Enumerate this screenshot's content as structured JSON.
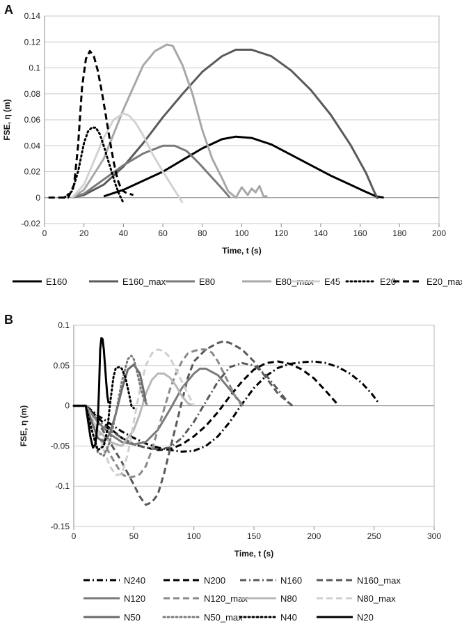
{
  "chart_data": [
    {
      "type": "line",
      "panel": "A",
      "xlabel": "Time, t (s)",
      "ylabel": "FSE, η (m)",
      "xlim": [
        0,
        200
      ],
      "ylim": [
        -0.02,
        0.14
      ],
      "xticks": [
        0,
        20,
        40,
        60,
        80,
        100,
        120,
        140,
        160,
        180,
        200
      ],
      "yticks": [
        -0.02,
        0,
        0.02,
        0.04,
        0.06,
        0.08,
        0.1,
        0.12,
        0.14
      ],
      "ytick_labels": [
        "-0.02",
        "0",
        "0.02",
        "0.04",
        "0.06",
        "0.08",
        "0.1",
        "0.12",
        "0.14"
      ],
      "grid": true,
      "legend_position": "bottom",
      "series": [
        {
          "name": "E160",
          "color": "#000000",
          "dash": "solid",
          "x": [
            30,
            40,
            50,
            60,
            70,
            80,
            90,
            97,
            105,
            115,
            125,
            135,
            145,
            155,
            162,
            168,
            172
          ],
          "y": [
            0.001,
            0.006,
            0.013,
            0.02,
            0.029,
            0.038,
            0.045,
            0.047,
            0.046,
            0.041,
            0.033,
            0.025,
            0.017,
            0.01,
            0.005,
            0.001,
            0
          ]
        },
        {
          "name": "E160_max",
          "color": "#5a5a5a",
          "dash": "solid",
          "x": [
            14,
            20,
            30,
            40,
            50,
            60,
            70,
            80,
            90,
            97,
            105,
            115,
            125,
            135,
            145,
            155,
            163,
            167,
            169
          ],
          "y": [
            0,
            0.002,
            0.01,
            0.024,
            0.042,
            0.062,
            0.08,
            0.097,
            0.109,
            0.114,
            0.114,
            0.109,
            0.098,
            0.083,
            0.064,
            0.041,
            0.019,
            0.005,
            -0.001
          ]
        },
        {
          "name": "E80",
          "color": "#7a7a7a",
          "dash": "solid",
          "x": [
            14,
            20,
            30,
            40,
            50,
            60,
            66,
            72,
            78,
            84,
            90,
            94
          ],
          "y": [
            0,
            0.003,
            0.014,
            0.025,
            0.034,
            0.04,
            0.04,
            0.036,
            0.027,
            0.017,
            0.007,
            0
          ]
        },
        {
          "name": "E80_max",
          "color": "#a8a8a8",
          "dash": "solid",
          "x": [
            14,
            20,
            30,
            40,
            50,
            56,
            62,
            65,
            70,
            75,
            80,
            85,
            90,
            93,
            97,
            100,
            103,
            105,
            107,
            109,
            111,
            113
          ],
          "y": [
            0,
            0.006,
            0.03,
            0.068,
            0.102,
            0.113,
            0.118,
            0.117,
            0.102,
            0.08,
            0.052,
            0.03,
            0.015,
            0.005,
            0,
            0.008,
            0.002,
            0.007,
            0.004,
            0.009,
            0.001,
            0.001
          ]
        },
        {
          "name": "E45",
          "color": "#d2d2d2",
          "dash": "solid",
          "x": [
            14,
            20,
            25,
            30,
            35,
            40,
            43,
            46,
            50,
            55,
            60,
            65,
            70
          ],
          "y": [
            0,
            0.01,
            0.028,
            0.046,
            0.06,
            0.065,
            0.063,
            0.058,
            0.048,
            0.033,
            0.02,
            0.008,
            -0.004
          ]
        },
        {
          "name": "E20",
          "color": "#000000",
          "dash": "dotted",
          "x": [
            10,
            14,
            17,
            20,
            22,
            24,
            26,
            28,
            30,
            32,
            34,
            36,
            38,
            40
          ],
          "y": [
            0,
            0.005,
            0.02,
            0.042,
            0.051,
            0.054,
            0.054,
            0.049,
            0.04,
            0.03,
            0.02,
            0.01,
            0.002,
            -0.004
          ]
        },
        {
          "name": "E20_max",
          "color": "#000000",
          "dash": "dashed",
          "x": [
            2,
            12,
            15,
            17,
            19,
            21,
            23,
            25,
            27,
            29,
            31,
            33,
            35,
            37,
            39,
            41,
            43,
            45
          ],
          "y": [
            0,
            0,
            0.01,
            0.04,
            0.085,
            0.107,
            0.113,
            0.109,
            0.098,
            0.082,
            0.064,
            0.045,
            0.028,
            0.014,
            0.006,
            0.004,
            0.003,
            0.002
          ]
        }
      ]
    },
    {
      "type": "line",
      "panel": "B",
      "xlabel": "Time, t (s)",
      "ylabel": "FSE, η (m)",
      "xlim": [
        0,
        300
      ],
      "ylim": [
        -0.15,
        0.1
      ],
      "xticks": [
        0,
        50,
        100,
        150,
        200,
        250,
        300
      ],
      "yticks": [
        -0.15,
        -0.1,
        -0.05,
        0,
        0.05,
        0.1
      ],
      "ytick_labels": [
        "-0.15",
        "-0.1",
        "-0.05",
        "0",
        "0.05",
        "0.1"
      ],
      "grid": true,
      "legend_position": "bottom",
      "series": [
        {
          "name": "N240",
          "color": "#000000",
          "dash": "dashdot",
          "x": [
            0,
            10,
            20,
            30,
            40,
            50,
            60,
            70,
            80,
            90,
            100,
            110,
            120,
            130,
            140,
            150,
            160,
            170,
            180,
            190,
            200,
            210,
            220,
            230,
            240,
            248,
            253
          ],
          "y": [
            0,
            0,
            -0.012,
            -0.022,
            -0.032,
            -0.04,
            -0.047,
            -0.052,
            -0.055,
            -0.057,
            -0.056,
            -0.05,
            -0.038,
            -0.02,
            0.002,
            0.022,
            0.037,
            0.047,
            0.052,
            0.054,
            0.055,
            0.053,
            0.048,
            0.04,
            0.028,
            0.015,
            0.005
          ]
        },
        {
          "name": "N200",
          "color": "#000000",
          "dash": "dashed",
          "x": [
            0,
            10,
            20,
            30,
            40,
            50,
            60,
            70,
            80,
            90,
            100,
            110,
            120,
            130,
            140,
            150,
            160,
            170,
            180,
            190,
            200,
            210,
            220
          ],
          "y": [
            0,
            0,
            -0.015,
            -0.028,
            -0.04,
            -0.048,
            -0.052,
            -0.055,
            -0.054,
            -0.048,
            -0.038,
            -0.025,
            -0.008,
            0.012,
            0.03,
            0.045,
            0.053,
            0.055,
            0.052,
            0.045,
            0.034,
            0.018,
            0.001
          ]
        },
        {
          "name": "N160",
          "color": "#5a5a5a",
          "dash": "dashdot",
          "x": [
            0,
            10,
            20,
            30,
            40,
            50,
            60,
            70,
            80,
            90,
            100,
            110,
            120,
            130,
            140,
            150,
            160,
            170,
            180
          ],
          "y": [
            0,
            0,
            -0.018,
            -0.03,
            -0.04,
            -0.048,
            -0.052,
            -0.054,
            -0.052,
            -0.04,
            -0.02,
            0.005,
            0.03,
            0.048,
            0.053,
            0.05,
            0.038,
            0.02,
            0.001
          ]
        },
        {
          "name": "N160_max",
          "color": "#5a5a5a",
          "dash": "dashed",
          "x": [
            0,
            10,
            15,
            20,
            30,
            40,
            50,
            55,
            60,
            65,
            70,
            75,
            80,
            85,
            90,
            95,
            100,
            110,
            120,
            125,
            130,
            140,
            150,
            160,
            170,
            182
          ],
          "y": [
            0,
            0,
            -0.01,
            -0.02,
            -0.045,
            -0.07,
            -0.098,
            -0.113,
            -0.123,
            -0.12,
            -0.11,
            -0.085,
            -0.055,
            -0.025,
            0.005,
            0.035,
            0.055,
            0.07,
            0.078,
            0.08,
            0.078,
            0.07,
            0.055,
            0.035,
            0.015,
            0
          ]
        },
        {
          "name": "N120",
          "color": "#7a7a7a",
          "dash": "solid",
          "x": [
            0,
            10,
            20,
            30,
            40,
            50,
            60,
            70,
            80,
            90,
            100,
            105,
            110,
            120,
            130,
            141
          ],
          "y": [
            0,
            0,
            -0.02,
            -0.035,
            -0.045,
            -0.048,
            -0.045,
            -0.03,
            -0.005,
            0.022,
            0.04,
            0.046,
            0.046,
            0.038,
            0.02,
            0
          ]
        },
        {
          "name": "N120_max",
          "color": "#8a8a8a",
          "dash": "dashed",
          "x": [
            0,
            10,
            20,
            30,
            40,
            45,
            50,
            55,
            60,
            65,
            70,
            75,
            80,
            85,
            90,
            95,
            100,
            105,
            110,
            115,
            120,
            125,
            130,
            135,
            140
          ],
          "y": [
            0,
            0,
            -0.03,
            -0.06,
            -0.085,
            -0.089,
            -0.088,
            -0.085,
            -0.075,
            -0.055,
            -0.03,
            -0.005,
            0.02,
            0.04,
            0.055,
            0.065,
            0.068,
            0.07,
            0.07,
            0.066,
            0.055,
            0.04,
            0.025,
            0.01,
            0
          ]
        },
        {
          "name": "N80",
          "color": "#b8b8b8",
          "dash": "solid",
          "x": [
            0,
            10,
            20,
            30,
            40,
            50,
            55,
            60,
            65,
            70,
            75,
            80,
            85,
            90,
            95,
            100
          ],
          "y": [
            0,
            0,
            -0.03,
            -0.045,
            -0.05,
            -0.03,
            -0.01,
            0.015,
            0.032,
            0.04,
            0.04,
            0.035,
            0.025,
            0.012,
            0.003,
            0
          ]
        },
        {
          "name": "N80_max",
          "color": "#d0d0d0",
          "dash": "dashed",
          "x": [
            0,
            10,
            20,
            25,
            30,
            35,
            40,
            45,
            50,
            55,
            60,
            65,
            70,
            75,
            80,
            85,
            90,
            95,
            100
          ],
          "y": [
            0,
            0,
            -0.03,
            -0.055,
            -0.075,
            -0.086,
            -0.085,
            -0.06,
            -0.02,
            0.02,
            0.05,
            0.065,
            0.07,
            0.068,
            0.06,
            0.045,
            0.03,
            0.015,
            0
          ]
        },
        {
          "name": "N50",
          "color": "#6a6a6a",
          "dash": "solid",
          "x": [
            0,
            10,
            15,
            20,
            25,
            30,
            35,
            40,
            45,
            50,
            55,
            58,
            60
          ],
          "y": [
            0,
            0,
            -0.02,
            -0.04,
            -0.045,
            -0.035,
            -0.01,
            0.02,
            0.045,
            0.051,
            0.04,
            0.02,
            0.005
          ]
        },
        {
          "name": "N50_max",
          "color": "#7a7a7a",
          "dash": "dotted",
          "x": [
            0,
            10,
            15,
            20,
            25,
            30,
            35,
            40,
            45,
            48,
            50,
            53,
            56,
            59,
            62
          ],
          "y": [
            0,
            0,
            -0.03,
            -0.058,
            -0.062,
            -0.045,
            -0.01,
            0.03,
            0.058,
            0.062,
            0.058,
            0.04,
            0.02,
            0.005,
            0
          ]
        },
        {
          "name": "N40",
          "color": "#000000",
          "dash": "dotted",
          "x": [
            0,
            10,
            15,
            20,
            25,
            28,
            30,
            33,
            35,
            38,
            40,
            43,
            46,
            48,
            50
          ],
          "y": [
            0,
            0,
            -0.03,
            -0.055,
            -0.05,
            -0.03,
            0.0,
            0.035,
            0.047,
            0.048,
            0.046,
            0.035,
            0.015,
            0.0,
            -0.003
          ]
        },
        {
          "name": "N20",
          "color": "#000000",
          "dash": "solid",
          "x": [
            0,
            10,
            14,
            16,
            18,
            20,
            21,
            22,
            23,
            24,
            25,
            26,
            27,
            28,
            29
          ],
          "y": [
            0,
            0,
            -0.04,
            -0.052,
            -0.048,
            -0.02,
            0.02,
            0.07,
            0.084,
            0.083,
            0.07,
            0.05,
            0.03,
            0.012,
            0.003
          ]
        }
      ]
    }
  ]
}
